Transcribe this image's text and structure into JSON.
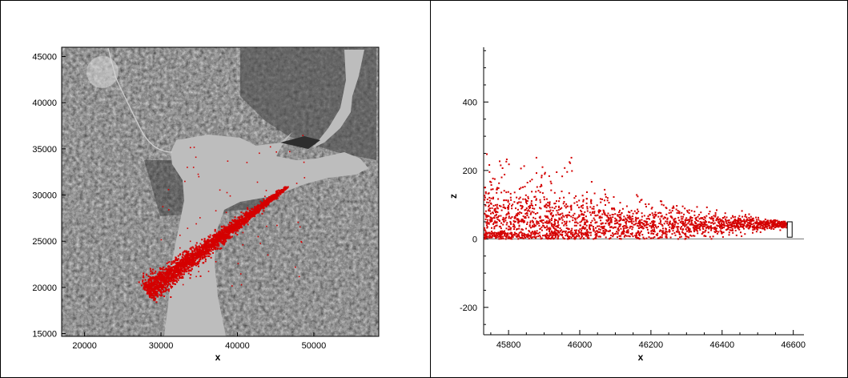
{
  "colors": {
    "particles": "#d40000",
    "axis": "#000000",
    "water": "#bdbdbd",
    "land_dark": "#2a2a2a",
    "ground_line": "#808080"
  },
  "chart_data": [
    {
      "type": "scatter",
      "xlabel": "x",
      "ylabel": "",
      "xlim": [
        17000,
        58500
      ],
      "ylim": [
        14700,
        46000
      ],
      "xticks": [
        "20000",
        "30000",
        "40000",
        "50000"
      ],
      "yticks": [
        "15000",
        "20000",
        "25000",
        "30000",
        "35000",
        "40000",
        "45000"
      ],
      "background": "satellite imagery (grayscale) with river/estuary in light gray",
      "plume": {
        "source": [
          46500,
          31000
        ],
        "tip": [
          28000,
          19500
        ],
        "half_width_at_tip": 1500
      }
    },
    {
      "type": "scatter",
      "xlabel": "x",
      "ylabel": "z",
      "xlim": [
        45730,
        46630
      ],
      "ylim": [
        -280,
        560
      ],
      "xticks": [
        "45800",
        "46000",
        "46200",
        "46400",
        "46600"
      ],
      "yticks": [
        "-200",
        "0",
        "200",
        "400"
      ],
      "grid": false,
      "ground_level": 0,
      "source": {
        "x": 46590,
        "z_bottom": 5,
        "z_top": 50
      },
      "plume": {
        "source_x": 46580,
        "source_z": 45,
        "spread_at_left": [
          0,
          230
        ]
      }
    }
  ]
}
